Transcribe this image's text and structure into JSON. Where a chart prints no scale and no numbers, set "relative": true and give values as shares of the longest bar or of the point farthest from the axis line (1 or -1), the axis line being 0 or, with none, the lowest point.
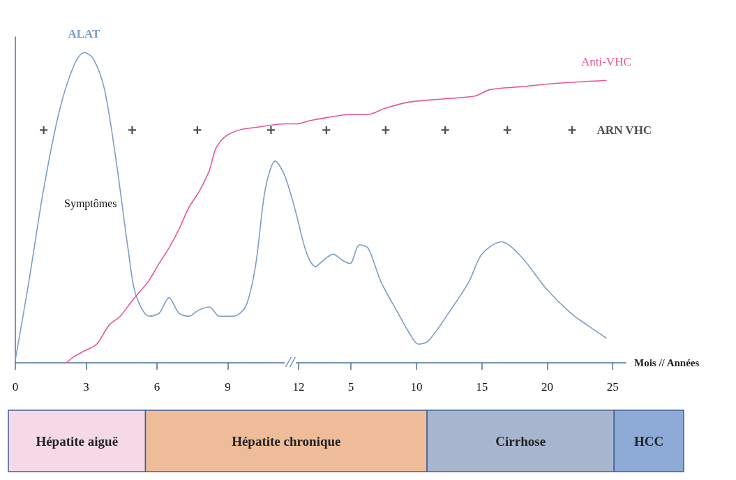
{
  "chart_data": [
    {
      "type": "line",
      "relative": true,
      "marker": "none",
      "xlim": [
        0,
        25.86
      ],
      "xticks": [
        0,
        3,
        6,
        9,
        12
      ],
      "x2label": "Mois // Années",
      "x2lim": [
        -20.65,
        26
      ],
      "x2ticks": [
        5,
        10,
        15,
        20,
        25
      ],
      "series": [
        {
          "name": "ALAT",
          "color": "#7b9ec8",
          "x": [
            0,
            0.57,
            1.2,
            1.86,
            2.49,
            2.91,
            3.3,
            3.78,
            4.29,
            4.77,
            5.1,
            5.67,
            6.09,
            6.51,
            6.93,
            7.35,
            7.77,
            8.22,
            8.64,
            9.21,
            9.75,
            10.17,
            10.59,
            11.01,
            11.43,
            12
          ],
          "values": [
            0.01,
            0.26,
            0.56,
            0.81,
            0.96,
            1,
            0.98,
            0.88,
            0.64,
            0.37,
            0.22,
            0.15,
            0.16,
            0.21,
            0.16,
            0.15,
            0.17,
            0.18,
            0.15,
            0.15,
            0.18,
            0.31,
            0.56,
            0.65,
            0.6,
            0.45
          ]
        },
        {
          "color": "#e5569a",
          "x": [
            2.16,
            2.49,
            2.97,
            3.45,
            3.96,
            4.44,
            4.95,
            5.61,
            6.09,
            6.51,
            6.93,
            7.35,
            7.77,
            8.22,
            8.49,
            8.91,
            9.48,
            10.32,
            11.43,
            12
          ],
          "values": [
            0,
            0.02,
            0.04,
            0.06,
            0.12,
            0.15,
            0.2,
            0.26,
            0.32,
            0.37,
            0.43,
            0.5,
            0.55,
            0.62,
            0.69,
            0.73,
            0.75,
            0.76,
            0.77,
            0.77
          ]
        },
        {
          "type": "scatter",
          "marker": "cross",
          "color": "#222222",
          "x": [
            1.2,
            4.95,
            7.71,
            10.83
          ],
          "values": [
            0.75,
            0.75,
            0.75,
            0.75
          ]
        },
        {
          "axis": "x2",
          "color": "#7b9ec8",
          "x": [
            1,
            1.64,
            2.28,
            2.88,
            3.64,
            4.36,
            4.92,
            5.65,
            6.3,
            7.3,
            8.6,
            9.4,
            10.15,
            10.9,
            12.45,
            14,
            15,
            16.5,
            18.05,
            19.9,
            21.8,
            23.1,
            24.5
          ],
          "values": [
            0.45,
            0.35,
            0.31,
            0.33,
            0.35,
            0.33,
            0.32,
            0.38,
            0.37,
            0.26,
            0.16,
            0.1,
            0.06,
            0.07,
            0.16,
            0.26,
            0.35,
            0.39,
            0.34,
            0.24,
            0.16,
            0.12,
            0.08
          ]
        },
        {
          "axis": "x2",
          "name": "Anti-VHC",
          "color": "#e5569a",
          "x": [
            1,
            1.84,
            3.12,
            4.8,
            6.3,
            7.6,
            9.4,
            11.95,
            14.5,
            15.6,
            18.05,
            20.5,
            24.5
          ],
          "values": [
            0.77,
            0.78,
            0.79,
            0.8,
            0.8,
            0.82,
            0.84,
            0.85,
            0.86,
            0.88,
            0.89,
            0.9,
            0.91
          ]
        },
        {
          "axis": "x2",
          "name": "ARN VHC",
          "type": "scatter",
          "marker": "cross",
          "color": "#222222",
          "x": [
            3.12,
            7.65,
            12.2,
            16.95,
            21.9
          ],
          "values": [
            0.75,
            0.75,
            0.75,
            0.75,
            0.75
          ]
        }
      ],
      "annotations": [
        "Symptômes",
        "//"
      ]
    },
    {
      "type": "other",
      "categories": [
        "Hépatite aiguë",
        "Hépatite chronique",
        "Cirrhose",
        "HCC"
      ],
      "colors": [
        "#f6d9e6",
        "#eebc98",
        "#a7b5cf",
        "#8eaad6"
      ]
    }
  ]
}
